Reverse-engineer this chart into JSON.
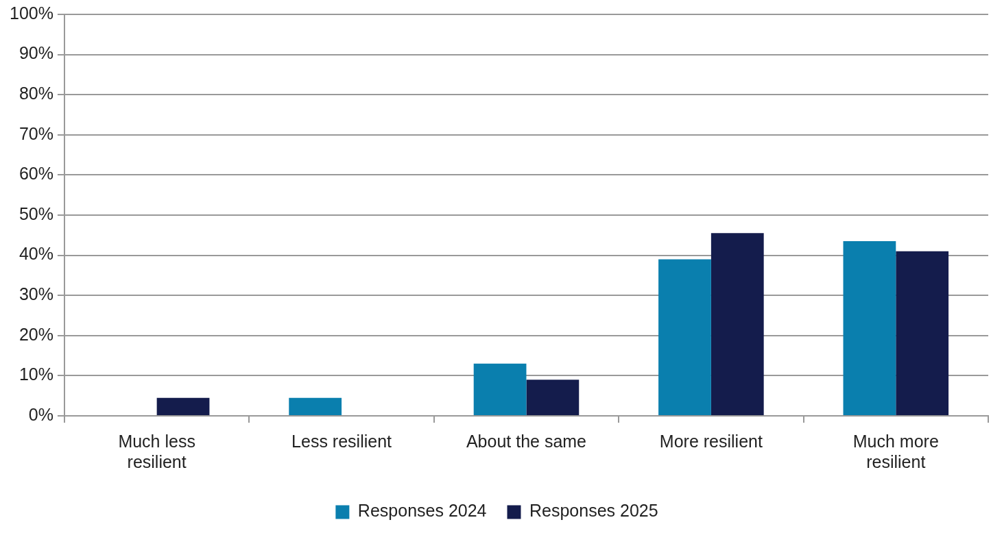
{
  "chart_data": {
    "type": "bar",
    "categories": [
      "Much less resilient",
      "Less resilient",
      "About the same",
      "More resilient",
      "Much more resilient"
    ],
    "series": [
      {
        "name": "Responses 2024",
        "color": "#0a7fae",
        "values": [
          0,
          4.5,
          13,
          39,
          43.5
        ]
      },
      {
        "name": "Responses 2025",
        "color": "#141c4c",
        "values": [
          4.5,
          0,
          9,
          45.5,
          41
        ]
      }
    ],
    "ylim": [
      0,
      100
    ],
    "yticks": [
      {
        "value": 0,
        "label": "0%"
      },
      {
        "value": 10,
        "label": "10%"
      },
      {
        "value": 20,
        "label": "20%"
      },
      {
        "value": 30,
        "label": "30%"
      },
      {
        "value": 40,
        "label": "40%"
      },
      {
        "value": 50,
        "label": "50%"
      },
      {
        "value": 60,
        "label": "60%"
      },
      {
        "value": 70,
        "label": "70%"
      },
      {
        "value": 80,
        "label": "80%"
      },
      {
        "value": 90,
        "label": "90%"
      },
      {
        "value": 100,
        "label": "100%"
      }
    ],
    "grid": "y",
    "legend": "bottom"
  }
}
